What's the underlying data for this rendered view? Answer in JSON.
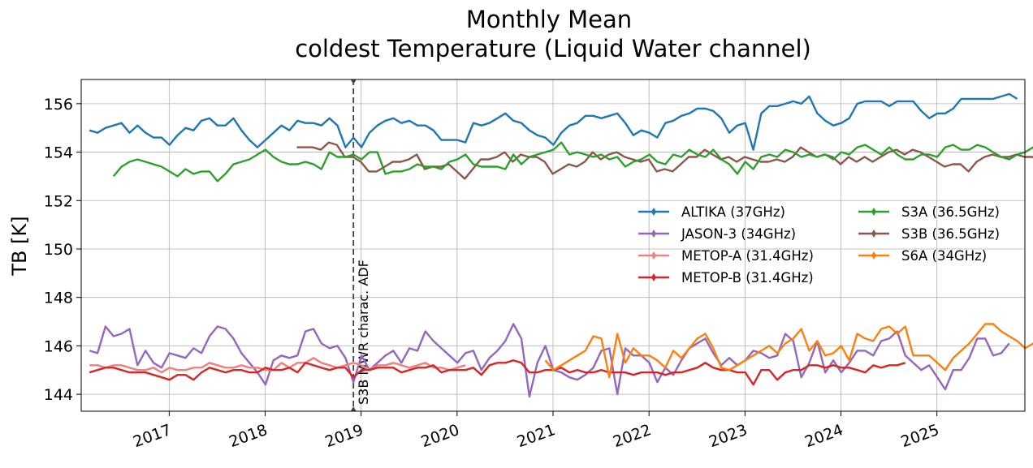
{
  "chart_data": {
    "type": "line",
    "title_line1": "Monthly Mean",
    "title_line2": "coldest Temperature (Liquid Water channel)",
    "xlabel": "",
    "ylabel": "TB [K]",
    "xlim": [
      "2016-02-01",
      "2025-12-01"
    ],
    "ylim": [
      143.3,
      157.0
    ],
    "yticks": [
      144,
      146,
      148,
      150,
      152,
      154,
      156
    ],
    "xticks": [
      "2017",
      "2018",
      "2019",
      "2020",
      "2021",
      "2022",
      "2023",
      "2024",
      "2025"
    ],
    "xtick_positions": [
      2017,
      2018,
      2019,
      2020,
      2021,
      2022,
      2023,
      2024,
      2025
    ],
    "grid": true,
    "legend_position": "center-right",
    "vline": {
      "x": 2018.92,
      "label": "S3B MWR charac. ADF",
      "color": "#444444"
    },
    "series": [
      {
        "name": "ALTIKA (37GHz)",
        "color": "#1f77b4",
        "start": 2016.17,
        "values": [
          154.9,
          154.8,
          155.0,
          155.1,
          155.2,
          154.8,
          155.1,
          154.8,
          154.6,
          154.6,
          154.3,
          154.7,
          155.0,
          154.9,
          155.3,
          155.4,
          155.1,
          155.1,
          155.4,
          154.9,
          154.5,
          154.2,
          154.5,
          154.8,
          155.1,
          154.9,
          155.3,
          155.2,
          155.2,
          155.1,
          155.4,
          155.1,
          154.2,
          154.6,
          154.2,
          154.8,
          155.1,
          155.3,
          155.4,
          155.2,
          155.3,
          155.1,
          155.1,
          154.9,
          154.5,
          154.5,
          154.5,
          154.4,
          155.2,
          155.1,
          155.2,
          155.4,
          155.6,
          155.3,
          155.2,
          154.9,
          154.7,
          154.6,
          154.3,
          154.8,
          155.1,
          155.2,
          155.5,
          155.5,
          155.4,
          155.5,
          155.6,
          155.2,
          154.7,
          154.9,
          154.8,
          154.6,
          155.2,
          155.3,
          155.5,
          155.6,
          155.8,
          155.8,
          155.7,
          155.4,
          154.8,
          155.1,
          155.2,
          154.1,
          155.6,
          155.9,
          155.9,
          156.0,
          156.1,
          156.0,
          156.3,
          155.6,
          155.3,
          155.1,
          155.2,
          155.4,
          156.0,
          156.1,
          156.1,
          156.1,
          155.9,
          156.1,
          156.1,
          156.1,
          155.7,
          155.4,
          155.6,
          155.6,
          155.8,
          156.2,
          156.2,
          156.2,
          156.2,
          156.2,
          156.3,
          156.4,
          156.2
        ]
      },
      {
        "name": "JASON-3 (34GHz)",
        "color": "#9467bd",
        "start": 2016.17,
        "values": [
          145.8,
          145.7,
          146.8,
          146.4,
          146.5,
          146.7,
          145.2,
          145.8,
          145.3,
          145.1,
          145.7,
          145.6,
          145.5,
          145.9,
          145.7,
          146.4,
          146.8,
          146.7,
          146.3,
          145.7,
          145.3,
          144.9,
          144.4,
          145.4,
          145.6,
          145.5,
          145.6,
          146.6,
          146.7,
          146.1,
          145.9,
          146.0,
          145.5,
          144.5,
          145.6,
          145.0,
          145.3,
          145.6,
          145.8,
          145.3,
          145.9,
          145.8,
          146.6,
          146.2,
          145.9,
          145.6,
          145.3,
          145.7,
          145.8,
          145.0,
          145.5,
          145.8,
          146.2,
          146.9,
          146.3,
          143.9,
          145.3,
          146.0,
          145.0,
          144.9,
          144.7,
          144.6,
          144.8,
          145.1,
          145.8,
          145.9,
          144.0,
          145.9,
          145.6,
          145.6,
          145.3,
          144.5,
          145.1,
          144.8,
          145.4,
          145.9,
          146.1,
          146.3,
          145.7,
          145.2,
          145.5,
          145.2,
          145.4,
          145.8,
          145.7,
          145.5,
          145.6,
          146.5,
          146.2,
          144.7,
          145.3,
          146.2,
          144.9,
          145.4,
          144.9,
          145.3,
          145.8,
          145.8,
          145.6,
          146.2,
          146.3,
          146.6,
          145.6,
          145.3,
          145.0,
          145.2,
          144.7,
          144.2,
          145.0,
          145.0,
          145.5,
          146.3,
          146.3,
          145.6,
          145.7,
          146.1
        ]
      },
      {
        "name": "METOP-A (31.4GHz)",
        "color": "#f08080",
        "start": 2016.17,
        "values": [
          145.2,
          145.2,
          145.1,
          145.2,
          145.2,
          145.1,
          145.0,
          145.0,
          145.1,
          144.9,
          145.1,
          145.0,
          145.0,
          145.1,
          145.1,
          145.3,
          145.2,
          145.1,
          145.1,
          145.2,
          145.1,
          145.1,
          145.0,
          145.0,
          145.3,
          145.1,
          145.3,
          145.3,
          145.5,
          145.3,
          145.2,
          145.1,
          145.2,
          145.3,
          145.2,
          145.0,
          145.2,
          145.2,
          145.3,
          145.2,
          145.1,
          145.2,
          145.3,
          145.1,
          145.1,
          145.0,
          145.1,
          145.2
        ]
      },
      {
        "name": "METOP-B (31.4GHz)",
        "color": "#d62728",
        "start": 2016.17,
        "values": [
          144.9,
          145.0,
          145.1,
          145.1,
          145.0,
          144.9,
          144.9,
          144.9,
          144.8,
          144.7,
          144.6,
          144.8,
          144.8,
          144.6,
          144.9,
          145.1,
          145.0,
          144.9,
          145.0,
          145.0,
          144.9,
          144.9,
          145.1,
          145.0,
          145.0,
          145.1,
          144.9,
          145.3,
          145.2,
          145.1,
          145.0,
          145.1,
          145.1,
          144.7,
          145.0,
          145.0,
          145.1,
          145.1,
          145.1,
          144.9,
          145.0,
          145.1,
          145.1,
          145.2,
          144.9,
          145.0,
          145.0,
          145.0,
          145.1,
          144.8,
          145.2,
          145.3,
          145.3,
          145.4,
          145.3,
          144.9,
          144.9,
          145.0,
          145.0,
          145.1,
          144.9,
          145.0,
          144.9,
          144.9,
          145.0,
          144.9,
          144.9,
          144.9,
          144.8,
          144.9,
          144.9,
          144.9,
          144.8,
          144.9,
          144.9,
          145.0,
          145.1,
          145.3,
          145.1,
          145.0,
          145.0,
          144.9,
          144.9,
          144.4,
          145.0,
          145.0,
          144.6,
          144.9,
          145.0,
          145.0,
          145.2,
          145.2,
          145.1,
          145.2,
          145.1,
          145.1,
          145.0,
          144.9,
          145.2,
          145.1,
          145.2,
          145.2,
          145.3
        ]
      },
      {
        "name": "S3A (36.5GHz)",
        "color": "#2ca02c",
        "start": 2016.42,
        "values": [
          153.0,
          153.4,
          153.6,
          153.7,
          153.6,
          153.5,
          153.4,
          153.2,
          153.0,
          153.3,
          153.1,
          153.2,
          153.2,
          152.8,
          153.1,
          153.5,
          153.6,
          153.7,
          153.9,
          154.1,
          153.8,
          153.6,
          153.5,
          153.5,
          153.6,
          153.5,
          153.3,
          154.0,
          153.8,
          153.8,
          153.9,
          153.7,
          154.0,
          154.0,
          153.1,
          153.2,
          153.2,
          153.3,
          153.5,
          153.4,
          153.4,
          153.3,
          153.6,
          153.7,
          153.9,
          153.5,
          153.4,
          153.4,
          153.4,
          153.3,
          153.9,
          153.5,
          153.8,
          153.9,
          154.0,
          154.1,
          154.4,
          153.9,
          154.0,
          153.9,
          153.8,
          153.9,
          153.7,
          153.8,
          153.4,
          153.6,
          153.7,
          153.9,
          153.6,
          153.5,
          153.9,
          153.8,
          154.1,
          153.9,
          153.8,
          154.1,
          153.7,
          153.5,
          153.1,
          153.6,
          153.3,
          153.8,
          153.9,
          153.8,
          154.1,
          154.0,
          153.8,
          153.9,
          153.8,
          153.9,
          153.7,
          154.0,
          153.9,
          154.2,
          154.3,
          154.1,
          153.9,
          154.2,
          153.9,
          153.7,
          153.7,
          153.9,
          153.9,
          153.8,
          154.2,
          154.3,
          154.1,
          154.1,
          154.3,
          154.2,
          154.0,
          153.8,
          153.7,
          153.9,
          154.0,
          154.2,
          154.1,
          154.0,
          154.3,
          154.0,
          153.9,
          153.7
        ]
      },
      {
        "name": "S3B (36.5GHz)",
        "color": "#8c564b",
        "start": 2018.33,
        "values": [
          154.2,
          154.2,
          154.2,
          154.1,
          154.4,
          154.3,
          153.8,
          153.8,
          153.6,
          153.2,
          153.2,
          153.4,
          153.6,
          153.6,
          153.7,
          153.9,
          153.3,
          153.4,
          153.4,
          153.5,
          153.2,
          152.9,
          153.3,
          153.7,
          153.7,
          153.8,
          154.0,
          153.6,
          153.9,
          153.8,
          153.8,
          153.6,
          153.1,
          153.3,
          153.5,
          153.4,
          153.6,
          154.0,
          153.7,
          153.9,
          154.0,
          153.8,
          153.7,
          153.6,
          153.7,
          153.2,
          153.3,
          153.2,
          153.5,
          153.8,
          153.8,
          154.1,
          153.9,
          153.7,
          153.8,
          153.6,
          153.8,
          153.7,
          153.6,
          153.6,
          153.7,
          153.6,
          153.8,
          154.2,
          154.0,
          153.8,
          153.9,
          153.8,
          153.5,
          153.8,
          153.6,
          153.8,
          153.6,
          153.8,
          154.0,
          154.1,
          153.9,
          154.1,
          154.0,
          153.8,
          153.6,
          153.4,
          153.5,
          153.5,
          153.2,
          153.6,
          153.8,
          153.9,
          153.8,
          153.8,
          153.9,
          153.8,
          153.8,
          153.6
        ]
      },
      {
        "name": "S6A (34GHz)",
        "color": "#ff7f0e",
        "start": 2020.92,
        "values": [
          145.4,
          145.0,
          145.2,
          145.4,
          145.6,
          145.8,
          146.4,
          146.3,
          144.7,
          146.5,
          145.3,
          145.9,
          145.6,
          145.6,
          145.4,
          145.1,
          145.8,
          145.5,
          145.9,
          146.3,
          146.5,
          145.9,
          145.1,
          145.0,
          145.2,
          145.4,
          145.6,
          145.8,
          146.0,
          145.7,
          146.1,
          146.3,
          146.7,
          145.8,
          146.2,
          145.6,
          145.7,
          146.0,
          145.4,
          146.5,
          146.3,
          146.2,
          146.7,
          146.8,
          146.5,
          146.8,
          145.6,
          145.6,
          145.6,
          145.3,
          145.0,
          145.5,
          145.8,
          146.1,
          146.5,
          146.9,
          146.9,
          146.6,
          146.4,
          146.2,
          145.9,
          146.1
        ]
      }
    ]
  }
}
